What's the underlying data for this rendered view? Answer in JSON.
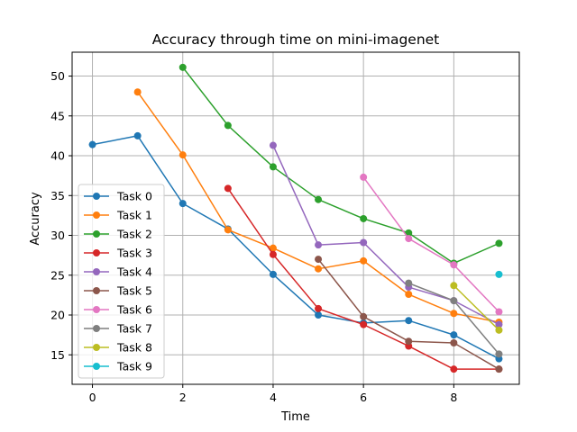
{
  "chart_data": {
    "type": "line",
    "title": "Accuracy through time on mini-imagenet",
    "xlabel": "Time",
    "ylabel": "Accuracy",
    "xlim": [
      -0.45,
      9.45
    ],
    "ylim": [
      11.3,
      53.0
    ],
    "xticks": [
      0,
      2,
      4,
      6,
      8
    ],
    "yticks": [
      15,
      20,
      25,
      30,
      35,
      40,
      45,
      50
    ],
    "grid": true,
    "legend_position": "center-left",
    "series": [
      {
        "name": "Task 0",
        "color": "#1f77b4",
        "x": [
          0,
          1,
          2,
          3,
          4,
          5,
          6,
          7,
          8,
          9
        ],
        "values": [
          41.4,
          42.5,
          34.0,
          30.8,
          25.1,
          20.0,
          19.0,
          19.3,
          17.5,
          14.5
        ]
      },
      {
        "name": "Task 1",
        "color": "#ff7f0e",
        "x": [
          1,
          2,
          3,
          4,
          5,
          6,
          7,
          8,
          9
        ],
        "values": [
          48.0,
          40.1,
          30.7,
          28.4,
          25.8,
          26.8,
          22.6,
          20.2,
          19.1
        ]
      },
      {
        "name": "Task 2",
        "color": "#2ca02c",
        "x": [
          2,
          3,
          4,
          5,
          6,
          7,
          8,
          9
        ],
        "values": [
          51.1,
          43.8,
          38.6,
          34.5,
          32.1,
          30.3,
          26.5,
          29.0
        ]
      },
      {
        "name": "Task 3",
        "color": "#d62728",
        "x": [
          3,
          4,
          5,
          6,
          7,
          8,
          9
        ],
        "values": [
          35.9,
          27.6,
          20.8,
          18.8,
          16.1,
          13.2,
          13.2
        ]
      },
      {
        "name": "Task 4",
        "color": "#9467bd",
        "x": [
          4,
          5,
          6,
          7,
          8,
          9
        ],
        "values": [
          41.3,
          28.8,
          29.1,
          23.5,
          21.8,
          18.8
        ]
      },
      {
        "name": "Task 5",
        "color": "#8c564b",
        "x": [
          5,
          6,
          7,
          8,
          9
        ],
        "values": [
          27.0,
          19.8,
          16.7,
          16.5,
          13.2
        ]
      },
      {
        "name": "Task 6",
        "color": "#e377c2",
        "x": [
          6,
          7,
          8,
          9
        ],
        "values": [
          37.3,
          29.6,
          26.3,
          20.4
        ]
      },
      {
        "name": "Task 7",
        "color": "#7f7f7f",
        "x": [
          7,
          8,
          9
        ],
        "values": [
          24.0,
          21.8,
          15.1
        ]
      },
      {
        "name": "Task 8",
        "color": "#bcbd22",
        "x": [
          8,
          9
        ],
        "values": [
          23.7,
          18.1
        ]
      },
      {
        "name": "Task 9",
        "color": "#17becf",
        "x": [
          9
        ],
        "values": [
          25.1
        ]
      }
    ]
  }
}
